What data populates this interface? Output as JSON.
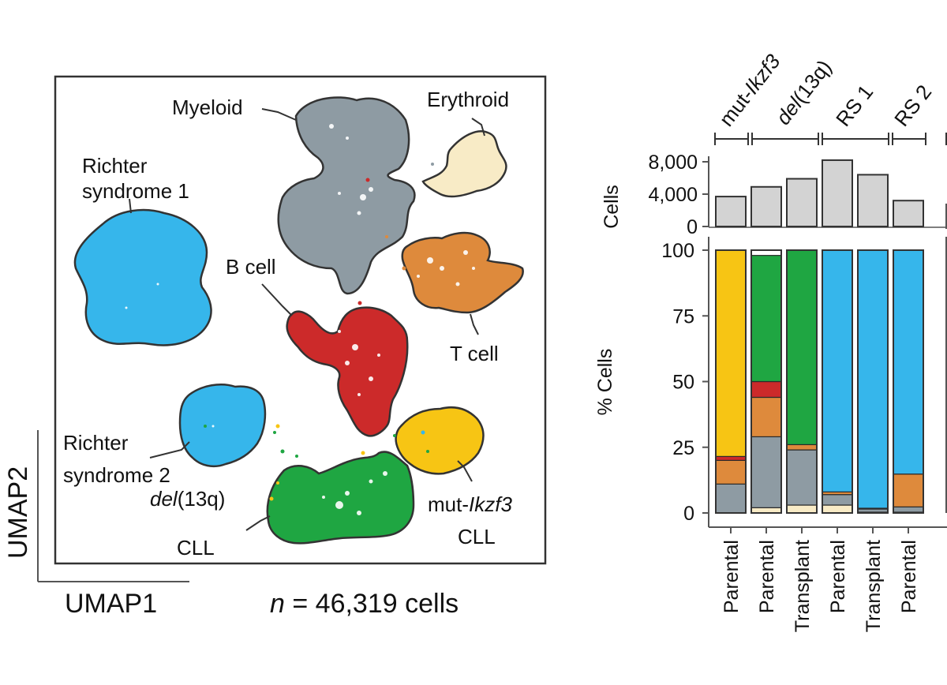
{
  "umap": {
    "x_axis_label": "UMAP1",
    "y_axis_label": "UMAP2",
    "cell_count_prefix": "n",
    "cell_count_text": " = 46,319 cells",
    "clusters": [
      {
        "name": "Myeloid",
        "color": "#8e9ba3"
      },
      {
        "name": "Erythroid",
        "color": "#f8ebc6"
      },
      {
        "name": "Richter syndrome 1",
        "line1": "Richter",
        "line2": "syndrome 1",
        "color": "#36b6eb"
      },
      {
        "name": "B cell",
        "color": "#cc2a2a"
      },
      {
        "name": "T cell",
        "color": "#de8a3c"
      },
      {
        "name": "Richter syndrome 2",
        "line1": "Richter",
        "line2": "syndrome 2",
        "color": "#36b6eb"
      },
      {
        "name": "del(13q) CLL",
        "italic": "del",
        "rest": "(13q)",
        "line2": "CLL",
        "color": "#1fa642"
      },
      {
        "name": "mut-Ikzf3 CLL",
        "prefix": "mut-",
        "italic": "Ikzf3",
        "line2": "CLL",
        "color": "#f7c514"
      }
    ]
  },
  "chart_data": [
    {
      "type": "bar",
      "ylabel": "Cells",
      "categories": [
        "Parental",
        "Parental",
        "Transplant",
        "Parental",
        "Transplant",
        "Parental"
      ],
      "values": [
        3700,
        4900,
        5900,
        8200,
        6400,
        3200
      ],
      "ylim": [
        0,
        8000
      ],
      "yticks": [
        "8,000",
        "4,000",
        "0"
      ],
      "color": "#d3d3d3"
    },
    {
      "type": "bar",
      "stacked": true,
      "ylabel": "% Cells",
      "ylim": [
        0,
        100
      ],
      "yticks": [
        "100",
        "75",
        "50",
        "25",
        "0"
      ],
      "categories": [
        "Parental",
        "Parental",
        "Transplant",
        "Parental",
        "Transplant",
        "Parental"
      ],
      "groups": [
        {
          "label": "mut-Ikzf3",
          "prefix": "mut-",
          "italic": "Ikzf3",
          "start": 0,
          "end": 0
        },
        {
          "label": "del(13q)",
          "italic": "del",
          "rest": "(13q)",
          "start": 1,
          "end": 2
        },
        {
          "label": "RS 1",
          "start": 3,
          "end": 4
        },
        {
          "label": "RS 2",
          "start": 5,
          "end": 5
        }
      ],
      "series": [
        {
          "color": "#f8ebc6",
          "values": [
            0,
            2,
            3,
            3,
            0.3,
            0.3
          ]
        },
        {
          "color": "#8e9ba3",
          "values": [
            11,
            27,
            21,
            4,
            1.2,
            2
          ]
        },
        {
          "color": "#de8a3c",
          "values": [
            9,
            15,
            2,
            1,
            0.3,
            12.5
          ]
        },
        {
          "color": "#cc2a2a",
          "values": [
            1.5,
            6,
            0,
            0,
            0,
            0
          ]
        },
        {
          "color": "#1fa642",
          "values": [
            0,
            48,
            74,
            0,
            0,
            0
          ]
        },
        {
          "color": "#36b6eb",
          "values": [
            0,
            0,
            0,
            92,
            98.2,
            85.2
          ]
        },
        {
          "color": "#f7c514",
          "values": [
            78.5,
            0,
            0,
            0,
            0,
            0
          ]
        }
      ]
    }
  ]
}
